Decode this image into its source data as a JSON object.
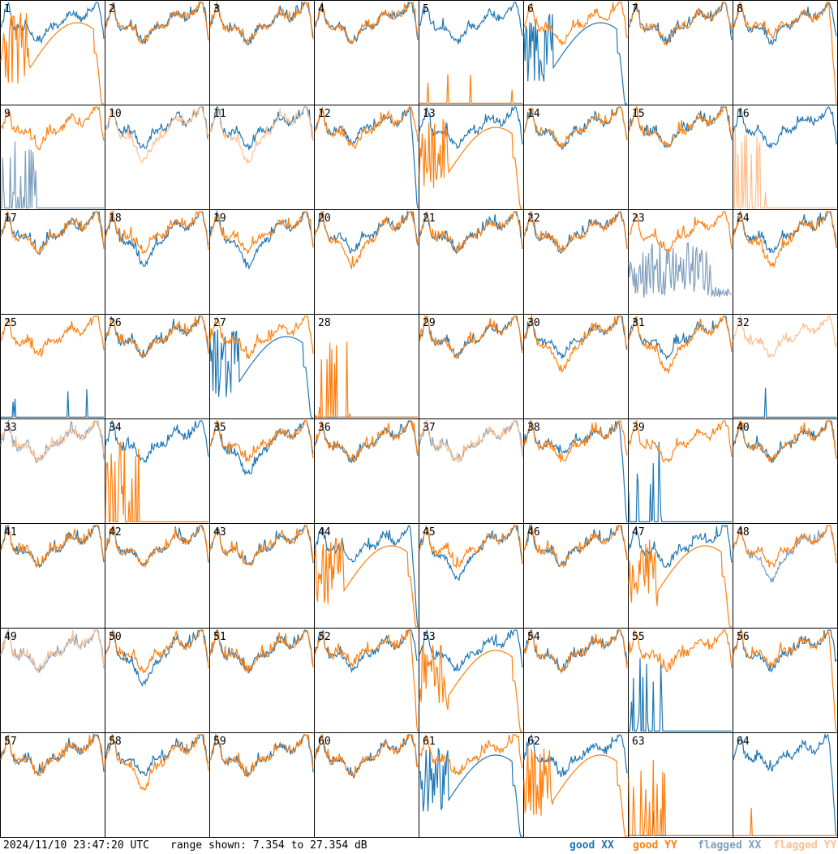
{
  "footer": {
    "timestamp": "2024/11/10 23:47:20 UTC",
    "range": "range shown: 7.354 to 27.354 dB",
    "legend": [
      {
        "label": "good XX",
        "color": "#1f77b4"
      },
      {
        "label": "good YY",
        "color": "#ff7f0e"
      },
      {
        "label": "flagged XX",
        "color": "#7f9fbf"
      },
      {
        "label": "flagged YY",
        "color": "#ffbf8f"
      }
    ]
  },
  "chart_data": {
    "type": "line",
    "grid": "8x8 small multiples",
    "y_range_db": [
      7.354,
      27.354
    ],
    "panels": [
      {
        "label": "1",
        "xx": "good",
        "yy": "good",
        "xx_shape": "normal",
        "yy_shape": "rolloff_spiky"
      },
      {
        "label": "2",
        "xx": "good",
        "yy": "good",
        "xx_shape": "normal",
        "yy_shape": "normal"
      },
      {
        "label": "3",
        "xx": "good",
        "yy": "good",
        "xx_shape": "normal",
        "yy_shape": "normal"
      },
      {
        "label": "4",
        "xx": "good",
        "yy": "good",
        "xx_shape": "normal",
        "yy_shape": "normal"
      },
      {
        "label": "5",
        "xx": "good",
        "yy": "good",
        "xx_shape": "normal",
        "yy_shape": "dead"
      },
      {
        "label": "6",
        "xx": "good",
        "yy": "good",
        "xx_shape": "rolloff_spiky",
        "yy_shape": "normal"
      },
      {
        "label": "7",
        "xx": "good",
        "yy": "good",
        "xx_shape": "normal",
        "yy_shape": "normal"
      },
      {
        "label": "8",
        "xx": "good",
        "yy": "good",
        "xx_shape": "normal",
        "yy_shape": "rolloff"
      },
      {
        "label": "9",
        "xx": "flagged",
        "yy": "good",
        "xx_shape": "dead_spikes",
        "yy_shape": "normal"
      },
      {
        "label": "10",
        "xx": "good",
        "yy": "flagged",
        "xx_shape": "normal",
        "yy_shape": "dip"
      },
      {
        "label": "11",
        "xx": "good",
        "yy": "flagged",
        "xx_shape": "normal",
        "yy_shape": "dip"
      },
      {
        "label": "12",
        "xx": "good",
        "yy": "good",
        "xx_shape": "rolloff",
        "yy_shape": "normal"
      },
      {
        "label": "13",
        "xx": "good",
        "yy": "good",
        "xx_shape": "normal",
        "yy_shape": "rolloff_spiky"
      },
      {
        "label": "14",
        "xx": "good",
        "yy": "good",
        "xx_shape": "normal",
        "yy_shape": "normal"
      },
      {
        "label": "15",
        "xx": "good",
        "yy": "good",
        "xx_shape": "normal",
        "yy_shape": "normal"
      },
      {
        "label": "16",
        "xx": "good",
        "yy": "flagged",
        "xx_shape": "normal",
        "yy_shape": "dead_spikes"
      },
      {
        "label": "17",
        "xx": "good",
        "yy": "good",
        "xx_shape": "normal",
        "yy_shape": "normal"
      },
      {
        "label": "18",
        "xx": "good",
        "yy": "good",
        "xx_shape": "dip",
        "yy_shape": "normal"
      },
      {
        "label": "19",
        "xx": "good",
        "yy": "good",
        "xx_shape": "dip",
        "yy_shape": "normal"
      },
      {
        "label": "20",
        "xx": "good",
        "yy": "good",
        "xx_shape": "normal",
        "yy_shape": "dip"
      },
      {
        "label": "21",
        "xx": "good",
        "yy": "good",
        "xx_shape": "normal",
        "yy_shape": "normal"
      },
      {
        "label": "22",
        "xx": "good",
        "yy": "good",
        "xx_shape": "normal",
        "yy_shape": "normal"
      },
      {
        "label": "23",
        "xx": "flagged",
        "yy": "good",
        "xx_shape": "noisy_low",
        "yy_shape": "normal"
      },
      {
        "label": "24",
        "xx": "good",
        "yy": "good",
        "xx_shape": "normal",
        "yy_shape": "dip"
      },
      {
        "label": "25",
        "xx": "good",
        "yy": "good",
        "xx_shape": "dead",
        "yy_shape": "normal"
      },
      {
        "label": "26",
        "xx": "good",
        "yy": "good",
        "xx_shape": "normal",
        "yy_shape": "normal"
      },
      {
        "label": "27",
        "xx": "good",
        "yy": "good",
        "xx_shape": "rolloff_spiky",
        "yy_shape": "normal"
      },
      {
        "label": "28",
        "xx": "good",
        "yy": "good",
        "xx_shape": "dead",
        "yy_shape": "dead_spikes"
      },
      {
        "label": "29",
        "xx": "good",
        "yy": "good",
        "xx_shape": "normal",
        "yy_shape": "normal"
      },
      {
        "label": "30",
        "xx": "good",
        "yy": "good",
        "xx_shape": "normal",
        "yy_shape": "dip"
      },
      {
        "label": "31",
        "xx": "good",
        "yy": "good",
        "xx_shape": "normal",
        "yy_shape": "dip"
      },
      {
        "label": "32",
        "xx": "good",
        "yy": "flagged",
        "xx_shape": "dead",
        "yy_shape": "normal"
      },
      {
        "label": "33",
        "xx": "flagged",
        "yy": "flagged",
        "xx_shape": "normal",
        "yy_shape": "normal"
      },
      {
        "label": "34",
        "xx": "good",
        "yy": "good",
        "xx_shape": "normal",
        "yy_shape": "dead_spikes"
      },
      {
        "label": "35",
        "xx": "good",
        "yy": "good",
        "xx_shape": "dip",
        "yy_shape": "normal"
      },
      {
        "label": "36",
        "xx": "good",
        "yy": "good",
        "xx_shape": "normal",
        "yy_shape": "normal"
      },
      {
        "label": "37",
        "xx": "flagged",
        "yy": "flagged",
        "xx_shape": "normal",
        "yy_shape": "normal"
      },
      {
        "label": "38",
        "xx": "good",
        "yy": "good",
        "xx_shape": "rolloff",
        "yy_shape": "normal"
      },
      {
        "label": "39",
        "xx": "good",
        "yy": "good",
        "xx_shape": "dead_spikes",
        "yy_shape": "normal"
      },
      {
        "label": "40",
        "xx": "good",
        "yy": "good",
        "xx_shape": "normal",
        "yy_shape": "normal"
      },
      {
        "label": "41",
        "xx": "good",
        "yy": "good",
        "xx_shape": "normal",
        "yy_shape": "normal"
      },
      {
        "label": "42",
        "xx": "good",
        "yy": "good",
        "xx_shape": "normal",
        "yy_shape": "normal"
      },
      {
        "label": "43",
        "xx": "good",
        "yy": "good",
        "xx_shape": "normal",
        "yy_shape": "normal"
      },
      {
        "label": "44",
        "xx": "good",
        "yy": "good",
        "xx_shape": "rolloff",
        "yy_shape": "rolloff_spiky"
      },
      {
        "label": "45",
        "xx": "good",
        "yy": "good",
        "xx_shape": "dip",
        "yy_shape": "normal"
      },
      {
        "label": "46",
        "xx": "good",
        "yy": "good",
        "xx_shape": "normal",
        "yy_shape": "normal"
      },
      {
        "label": "47",
        "xx": "good",
        "yy": "good",
        "xx_shape": "normal",
        "yy_shape": "rolloff_spiky"
      },
      {
        "label": "48",
        "xx": "flagged",
        "yy": "good",
        "xx_shape": "dip",
        "yy_shape": "normal"
      },
      {
        "label": "49",
        "xx": "flagged",
        "yy": "flagged",
        "xx_shape": "normal",
        "yy_shape": "normal"
      },
      {
        "label": "50",
        "xx": "good",
        "yy": "good",
        "xx_shape": "dip",
        "yy_shape": "normal"
      },
      {
        "label": "51",
        "xx": "good",
        "yy": "good",
        "xx_shape": "normal",
        "yy_shape": "normal"
      },
      {
        "label": "52",
        "xx": "good",
        "yy": "good",
        "xx_shape": "normal",
        "yy_shape": "rolloff"
      },
      {
        "label": "53",
        "xx": "good",
        "yy": "good",
        "xx_shape": "normal",
        "yy_shape": "rolloff_spiky"
      },
      {
        "label": "54",
        "xx": "good",
        "yy": "good",
        "xx_shape": "normal",
        "yy_shape": "normal"
      },
      {
        "label": "55",
        "xx": "good",
        "yy": "good",
        "xx_shape": "dead_spikes",
        "yy_shape": "normal"
      },
      {
        "label": "56",
        "xx": "good",
        "yy": "good",
        "xx_shape": "normal",
        "yy_shape": "rolloff"
      },
      {
        "label": "57",
        "xx": "good",
        "yy": "good",
        "xx_shape": "normal",
        "yy_shape": "normal"
      },
      {
        "label": "58",
        "xx": "good",
        "yy": "good",
        "xx_shape": "normal",
        "yy_shape": "dip"
      },
      {
        "label": "59",
        "xx": "good",
        "yy": "good",
        "xx_shape": "normal",
        "yy_shape": "normal"
      },
      {
        "label": "60",
        "xx": "good",
        "yy": "good",
        "xx_shape": "normal",
        "yy_shape": "normal"
      },
      {
        "label": "61",
        "xx": "good",
        "yy": "good",
        "xx_shape": "rolloff_spiky",
        "yy_shape": "normal"
      },
      {
        "label": "62",
        "xx": "good",
        "yy": "good",
        "xx_shape": "normal",
        "yy_shape": "rolloff_spiky"
      },
      {
        "label": "63",
        "xx": "good",
        "yy": "good",
        "xx_shape": "dead",
        "yy_shape": "dead_spikes"
      },
      {
        "label": "64",
        "xx": "good",
        "yy": "good",
        "xx_shape": "rolloff",
        "yy_shape": "dead"
      }
    ]
  }
}
